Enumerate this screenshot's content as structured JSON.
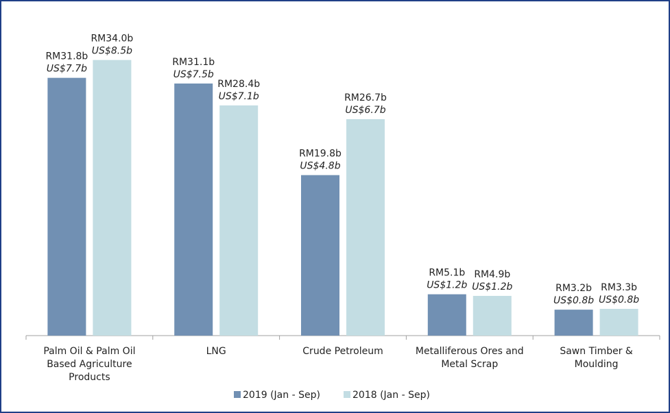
{
  "chart_data": {
    "type": "bar",
    "title": "",
    "xlabel": "",
    "ylabel": "",
    "ylim": [
      0,
      37.6
    ],
    "grid": false,
    "legend_position": "bottom",
    "colors": {
      "2019 (Jan - Sep)": "#7190b3",
      "2018 (Jan - Sep)": "#c3dde3"
    },
    "categories": [
      [
        "Palm Oil & Palm Oil",
        "Based Agriculture",
        "Products"
      ],
      [
        "LNG"
      ],
      [
        "Crude Petroleum"
      ],
      [
        "Metalliferous Ores and",
        "Metal Scrap"
      ],
      [
        "Sawn Timber &",
        "Moulding"
      ]
    ],
    "series": [
      {
        "name": "2019 (Jan - Sep)",
        "values": [
          31.8,
          31.1,
          19.8,
          5.1,
          3.2
        ],
        "rm_labels": [
          "RM31.8b",
          "RM31.1b",
          "RM19.8b",
          "RM5.1b",
          "RM3.2b"
        ],
        "usd_labels": [
          "US$7.7b",
          "US$7.5b",
          "US$4.8b",
          "US$1.2b",
          "US$0.8b"
        ]
      },
      {
        "name": "2018 (Jan - Sep)",
        "values": [
          34.0,
          28.4,
          26.7,
          4.9,
          3.3
        ],
        "rm_labels": [
          "RM34.0b",
          "RM28.4b",
          "RM26.7b",
          "RM4.9b",
          "RM3.3b"
        ],
        "usd_labels": [
          "US$8.5b",
          "US$7.1b",
          "US$6.7b",
          "US$1.2b",
          "US$0.8b"
        ]
      }
    ]
  }
}
